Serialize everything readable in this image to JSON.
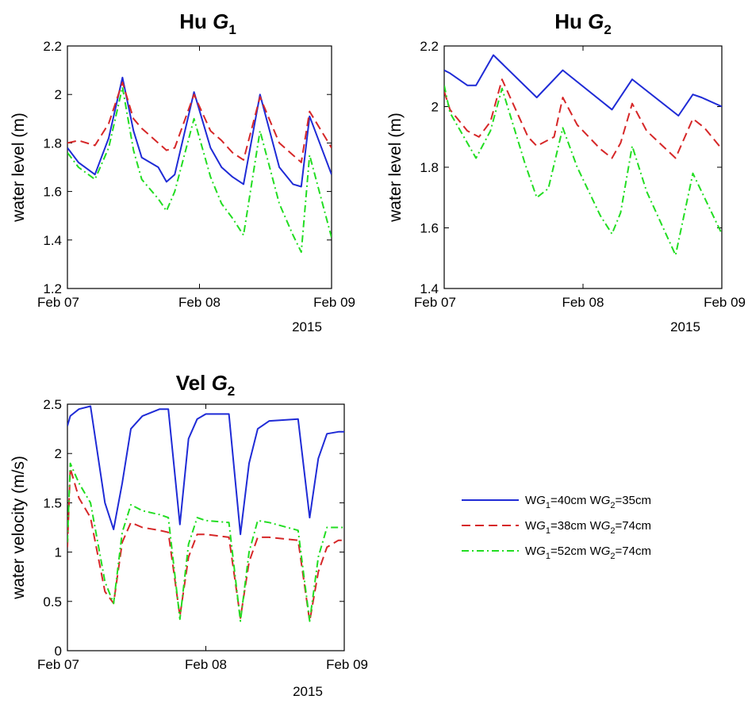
{
  "chart_data": [
    {
      "id": "hu-g1",
      "type": "line",
      "title": {
        "prefix": "Hu ",
        "var": "G",
        "sub": "1"
      },
      "xlabel": "",
      "xlabel_year": "2015",
      "ylabel": "water level (m)",
      "x_ticks": [
        "Feb 07",
        "Feb 08",
        "Feb 09"
      ],
      "xlim_hours": [
        0,
        48
      ],
      "ylim": [
        1.2,
        2.2
      ],
      "y_ticks": [
        "1.2",
        "1.4",
        "1.6",
        "1.8",
        "2",
        "2.2"
      ],
      "y_tick_values": [
        1.2,
        1.4,
        1.6,
        1.8,
        2.0,
        2.2
      ],
      "series": [
        {
          "style": "solid",
          "color": "#1f2bd6",
          "x": [
            0,
            2,
            5,
            7.5,
            10,
            12,
            13.5,
            16.5,
            18,
            19.5,
            23,
            26,
            28,
            30,
            32,
            35,
            38.5,
            41,
            42.5,
            44,
            48
          ],
          "y": [
            1.78,
            1.72,
            1.67,
            1.82,
            2.07,
            1.85,
            1.74,
            1.7,
            1.64,
            1.67,
            2.01,
            1.78,
            1.7,
            1.66,
            1.63,
            2.0,
            1.7,
            1.63,
            1.62,
            1.91,
            1.67
          ]
        },
        {
          "style": "dashed",
          "color": "#d62728",
          "x": [
            0,
            2,
            5,
            7.5,
            10,
            12,
            13.5,
            16.5,
            18,
            19.5,
            23,
            26,
            28,
            30,
            32,
            35,
            38.5,
            41,
            42.5,
            44,
            48
          ],
          "y": [
            1.8,
            1.81,
            1.79,
            1.88,
            2.05,
            1.9,
            1.86,
            1.8,
            1.77,
            1.78,
            2.0,
            1.85,
            1.81,
            1.76,
            1.73,
            1.99,
            1.8,
            1.75,
            1.72,
            1.93,
            1.78
          ]
        },
        {
          "style": "dashdot",
          "color": "#22dd22",
          "x": [
            0,
            2,
            5,
            7.5,
            10,
            12,
            13.5,
            16.5,
            18,
            19.5,
            23,
            26,
            28,
            30,
            32,
            35,
            38.5,
            41,
            42.5,
            44,
            48
          ],
          "y": [
            1.76,
            1.7,
            1.65,
            1.78,
            2.03,
            1.77,
            1.65,
            1.57,
            1.52,
            1.6,
            1.9,
            1.66,
            1.55,
            1.49,
            1.42,
            1.85,
            1.55,
            1.42,
            1.35,
            1.75,
            1.41
          ]
        }
      ]
    },
    {
      "id": "hu-g2",
      "type": "line",
      "title": {
        "prefix": "Hu ",
        "var": "G",
        "sub": "2"
      },
      "xlabel": "",
      "xlabel_year": "2015",
      "ylabel": "water level (m)",
      "x_ticks": [
        "Feb 07",
        "Feb 08",
        "Feb 09"
      ],
      "xlim_hours": [
        0,
        48
      ],
      "ylim": [
        1.4,
        2.2
      ],
      "y_ticks": [
        "1.4",
        "1.6",
        "1.8",
        "2",
        "2.2"
      ],
      "y_tick_values": [
        1.4,
        1.6,
        1.8,
        2.0,
        2.2
      ],
      "series": [
        {
          "style": "solid",
          "color": "#1f2bd6",
          "x": [
            0,
            1,
            4,
            5.5,
            8.5,
            16,
            20.5,
            29,
            32.5,
            40.5,
            43,
            44.5,
            48
          ],
          "y": [
            2.12,
            2.11,
            2.07,
            2.07,
            2.17,
            2.03,
            2.12,
            1.99,
            2.09,
            1.97,
            2.04,
            2.03,
            2.0
          ]
        },
        {
          "style": "dashed",
          "color": "#d62728",
          "x": [
            0,
            1,
            4,
            6,
            8,
            10,
            14.5,
            16,
            19,
            20.5,
            23,
            27,
            29,
            30.5,
            32.5,
            35,
            40,
            43,
            45,
            48
          ],
          "y": [
            2.05,
            1.99,
            1.92,
            1.9,
            1.95,
            2.09,
            1.9,
            1.87,
            1.9,
            2.03,
            1.94,
            1.86,
            1.83,
            1.88,
            2.01,
            1.92,
            1.83,
            1.96,
            1.93,
            1.86
          ]
        },
        {
          "style": "dashdot",
          "color": "#22dd22",
          "x": [
            0,
            1,
            4,
            5.5,
            8,
            10,
            14,
            16,
            18,
            20.5,
            23,
            27,
            29,
            30.5,
            32.5,
            35,
            40,
            43,
            45,
            48
          ],
          "y": [
            2.07,
            1.98,
            1.88,
            1.83,
            1.92,
            2.06,
            1.81,
            1.7,
            1.73,
            1.93,
            1.8,
            1.64,
            1.58,
            1.65,
            1.87,
            1.72,
            1.51,
            1.78,
            1.7,
            1.58
          ]
        }
      ]
    },
    {
      "id": "vel-g2",
      "type": "line",
      "title": {
        "prefix": "Vel ",
        "var": "G",
        "sub": "2"
      },
      "xlabel": "",
      "xlabel_year": "2015",
      "ylabel": "water velocity (m/s)",
      "x_ticks": [
        "Feb 07",
        "Feb 08",
        "Feb 09"
      ],
      "xlim_hours": [
        0,
        48
      ],
      "ylim": [
        0,
        2.5
      ],
      "y_ticks": [
        "0",
        "0.5",
        "1",
        "1.5",
        "2",
        "2.5"
      ],
      "y_tick_values": [
        0,
        0.5,
        1.0,
        1.5,
        2.0,
        2.5
      ],
      "series": [
        {
          "style": "solid",
          "color": "#1f2bd6",
          "x": [
            0,
            0.5,
            2,
            4,
            6.5,
            8,
            9.5,
            11,
            13,
            16,
            17.5,
            19.5,
            21,
            22.5,
            24,
            28,
            30,
            31.5,
            33,
            35,
            40,
            42,
            43.5,
            45,
            47,
            48
          ],
          "y": [
            2.28,
            2.38,
            2.45,
            2.48,
            1.5,
            1.23,
            1.7,
            2.25,
            2.38,
            2.45,
            2.45,
            1.28,
            2.15,
            2.35,
            2.4,
            2.4,
            1.18,
            1.9,
            2.25,
            2.33,
            2.35,
            1.35,
            1.95,
            2.2,
            2.22,
            2.22
          ]
        },
        {
          "style": "dashed",
          "color": "#d62728",
          "x": [
            0,
            0.5,
            2,
            4,
            6.5,
            8,
            9.5,
            11,
            13,
            16,
            17.5,
            19.5,
            21,
            22.5,
            24,
            28,
            30,
            31.5,
            33,
            35,
            40,
            42,
            43.5,
            45,
            47,
            48
          ],
          "y": [
            1.05,
            1.85,
            1.55,
            1.35,
            0.6,
            0.48,
            1.1,
            1.3,
            1.25,
            1.22,
            1.2,
            0.35,
            0.95,
            1.18,
            1.18,
            1.15,
            0.33,
            0.9,
            1.15,
            1.15,
            1.12,
            0.3,
            0.8,
            1.05,
            1.12,
            1.12
          ]
        },
        {
          "style": "dashdot",
          "color": "#22dd22",
          "x": [
            0,
            0.5,
            2,
            4,
            6.5,
            8,
            9.5,
            11,
            13,
            16,
            17.5,
            19.5,
            21,
            22.5,
            24,
            28,
            30,
            31.5,
            33,
            35,
            40,
            42,
            43.5,
            45,
            47,
            48
          ],
          "y": [
            1.1,
            1.9,
            1.7,
            1.5,
            0.7,
            0.48,
            1.2,
            1.48,
            1.42,
            1.38,
            1.35,
            0.32,
            1.08,
            1.35,
            1.32,
            1.3,
            0.3,
            1.0,
            1.32,
            1.3,
            1.22,
            0.3,
            0.95,
            1.25,
            1.25,
            1.25
          ]
        }
      ]
    }
  ],
  "legend": {
    "entries": [
      {
        "style": "solid",
        "color": "#1f2bd6",
        "parts": [
          "W",
          "G",
          "1",
          "=40cm W",
          "G",
          "2",
          "=35cm"
        ]
      },
      {
        "style": "dashed",
        "color": "#d62728",
        "parts": [
          "W",
          "G",
          "1",
          "=38cm W",
          "G",
          "2",
          "=74cm"
        ]
      },
      {
        "style": "dashdot",
        "color": "#22dd22",
        "parts": [
          "W",
          "G",
          "1",
          "=52cm W",
          "G",
          "2",
          "=74cm"
        ]
      }
    ]
  }
}
